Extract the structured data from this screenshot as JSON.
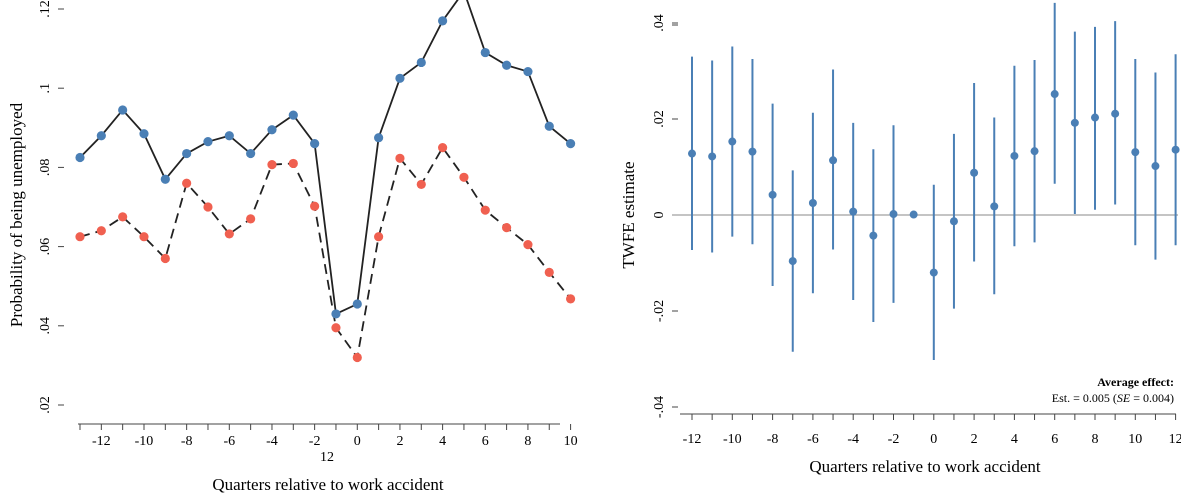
{
  "chart_data": [
    {
      "type": "line",
      "title": "",
      "xlabel": "Quarters relative to work accident",
      "ylabel": "Probability of being unemployed",
      "xlim": [
        -13,
        10
      ],
      "ylim": [
        0.02,
        0.12
      ],
      "x_ticks": [
        -12,
        -10,
        -8,
        -6,
        -4,
        -2,
        0,
        2,
        4,
        6,
        8,
        10
      ],
      "x_tick_labels": [
        "-12",
        "-10",
        "-8",
        "-6",
        "-4",
        "-2",
        "0",
        "2",
        "4",
        "6",
        "8",
        "10"
      ],
      "y_ticks": [
        0.02,
        0.04,
        0.06,
        0.08,
        0.1,
        0.12
      ],
      "y_tick_labels": [
        ".02",
        ".04",
        ".06",
        ".08",
        ".1",
        ".12"
      ],
      "extra_label": "12",
      "grid": false,
      "colors": {
        "series_a": "#4a7fb5",
        "series_b": "#f06050",
        "line": "#222222"
      },
      "x": [
        -13,
        -12,
        -11,
        -10,
        -9,
        -8,
        -7,
        -6,
        -5,
        -4,
        -3,
        -2,
        -1,
        0,
        1,
        2,
        3,
        4,
        5,
        6,
        7,
        8,
        9,
        10
      ],
      "series": [
        {
          "style": "solid",
          "color": "#4a7fb5",
          "values": [
            0.0825,
            0.088,
            0.0945,
            0.0885,
            0.077,
            0.0835,
            0.0865,
            0.088,
            0.0835,
            0.0895,
            0.0932,
            0.086,
            0.043,
            0.0455,
            0.0875,
            0.1025,
            0.1065,
            0.117,
            0.1245,
            0.109,
            0.1058,
            0.1042,
            0.0904,
            0.086
          ]
        },
        {
          "style": "dashed",
          "color": "#f06050",
          "values": [
            0.0625,
            0.064,
            0.0675,
            0.0625,
            0.057,
            0.076,
            0.07,
            0.0632,
            0.067,
            0.0807,
            0.081,
            0.0702,
            0.0395,
            0.032,
            0.0625,
            0.0823,
            0.0757,
            0.085,
            0.0775,
            0.0692,
            0.0648,
            0.0605,
            0.0535,
            0.0468
          ]
        }
      ]
    },
    {
      "type": "scatter",
      "subtype": "point-with-error-bars",
      "title": "",
      "xlabel": "Quarters relative to work accident",
      "ylabel": "TWFE estimate",
      "xlim": [
        -12,
        12
      ],
      "ylim": [
        -0.04,
        0.04
      ],
      "x_ticks": [
        -12,
        -10,
        -8,
        -6,
        -4,
        -2,
        0,
        2,
        4,
        6,
        8,
        10,
        12
      ],
      "x_tick_labels": [
        "-12",
        "-10",
        "-8",
        "-6",
        "-4",
        "-2",
        "0",
        "2",
        "4",
        "6",
        "8",
        "10",
        "12"
      ],
      "y_ticks": [
        -0.04,
        -0.02,
        0,
        0.02,
        0.04
      ],
      "y_tick_labels": [
        "-.04",
        "-.02",
        "0",
        ".02",
        ".04"
      ],
      "zero_line": true,
      "grid": false,
      "colors": {
        "points": "#4a7fb5",
        "zero_line": "#a0a0a0"
      },
      "x": [
        -12,
        -11,
        -10,
        -9,
        -8,
        -7,
        -6,
        -5,
        -4,
        -3,
        -2,
        -1,
        0,
        1,
        2,
        3,
        4,
        5,
        6,
        7,
        8,
        9,
        10,
        11,
        12
      ],
      "estimate": [
        0.0128,
        0.0122,
        0.0153,
        0.0132,
        0.0042,
        -0.0096,
        0.0025,
        0.0114,
        0.0007,
        -0.0043,
        0.0002,
        0.0001,
        -0.012,
        -0.0013,
        0.0088,
        0.0018,
        0.0123,
        0.0133,
        0.0252,
        0.0192,
        0.0203,
        0.0211,
        0.0131,
        0.0102,
        0.0136
      ],
      "ci_low": [
        -0.0073,
        -0.0078,
        -0.0045,
        -0.0061,
        -0.0148,
        -0.0285,
        -0.0163,
        -0.0072,
        -0.0177,
        -0.0223,
        -0.0183,
        0.0001,
        -0.0302,
        -0.0195,
        -0.0097,
        -0.0165,
        -0.0065,
        -0.0057,
        0.0065,
        0.0002,
        0.0011,
        0.0022,
        -0.0063,
        -0.0093,
        -0.0063
      ],
      "ci_high": [
        0.033,
        0.0322,
        0.0351,
        0.0325,
        0.0232,
        0.0093,
        0.0213,
        0.0303,
        0.0192,
        0.0137,
        0.0187,
        0.0001,
        0.0063,
        0.0169,
        0.0275,
        0.0203,
        0.0311,
        0.0323,
        0.0442,
        0.0382,
        0.0392,
        0.0404,
        0.0325,
        0.0297,
        0.0335
      ],
      "annotation": {
        "title": "Average effect:",
        "est_prefix": "Est. = 0.005 (",
        "se_label": "SE",
        "est_suffix": " = 0.004)"
      }
    }
  ]
}
